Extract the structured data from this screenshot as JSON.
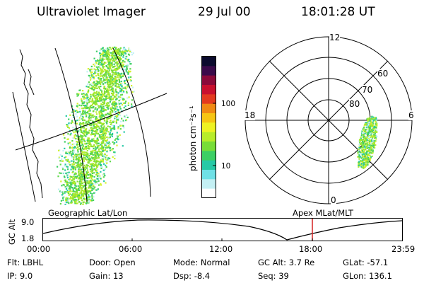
{
  "header": {
    "instrument": "Ultraviolet Imager",
    "date": "29 Jul 00",
    "time": "18:01:28 UT"
  },
  "colorbar": {
    "unit_label": "photon cm⁻²s⁻¹",
    "ticks": [
      "100",
      "10"
    ],
    "colors": [
      "#0b0b2e",
      "#3a0a4a",
      "#8a0a3a",
      "#c8102e",
      "#e33a1f",
      "#f08a14",
      "#f6c514",
      "#eef223",
      "#b8ec2a",
      "#78dd38",
      "#3ccf64",
      "#27c9a6",
      "#6fe0e6",
      "#c4f0f4",
      "#ffffff"
    ]
  },
  "polar": {
    "mlt_labels": {
      "top": "12",
      "left": "18",
      "right": "6",
      "bottom": "0"
    },
    "lat_labels": [
      "60",
      "70",
      "80"
    ]
  },
  "timeline": {
    "left_title": "Geographic Lat/Lon",
    "right_title": "Apex MLat/MLT",
    "axis_name": "GC Alt",
    "y_max": "9.0",
    "y_min": "1.8",
    "x_ticks": [
      "00:00",
      "06:00",
      "12:00",
      "18:00",
      "23:59"
    ],
    "marker_color": "#d42020"
  },
  "status": {
    "row1": [
      {
        "label": "Flt:",
        "value": "LBHL"
      },
      {
        "label": "Door:",
        "value": "Open"
      },
      {
        "label": "Mode:",
        "value": "Normal"
      },
      {
        "label": "GC Alt:",
        "value": "3.7 Re"
      },
      {
        "label": "GLat:",
        "value": "-57.1"
      }
    ],
    "row2": [
      {
        "label": "IP:",
        "value": "9.0"
      },
      {
        "label": "Gain:",
        "value": "13"
      },
      {
        "label": "Dsp:",
        "value": "-8.4"
      },
      {
        "label": "Seq:",
        "value": "39"
      },
      {
        "label": "GLon:",
        "value": "136.1"
      }
    ]
  }
}
